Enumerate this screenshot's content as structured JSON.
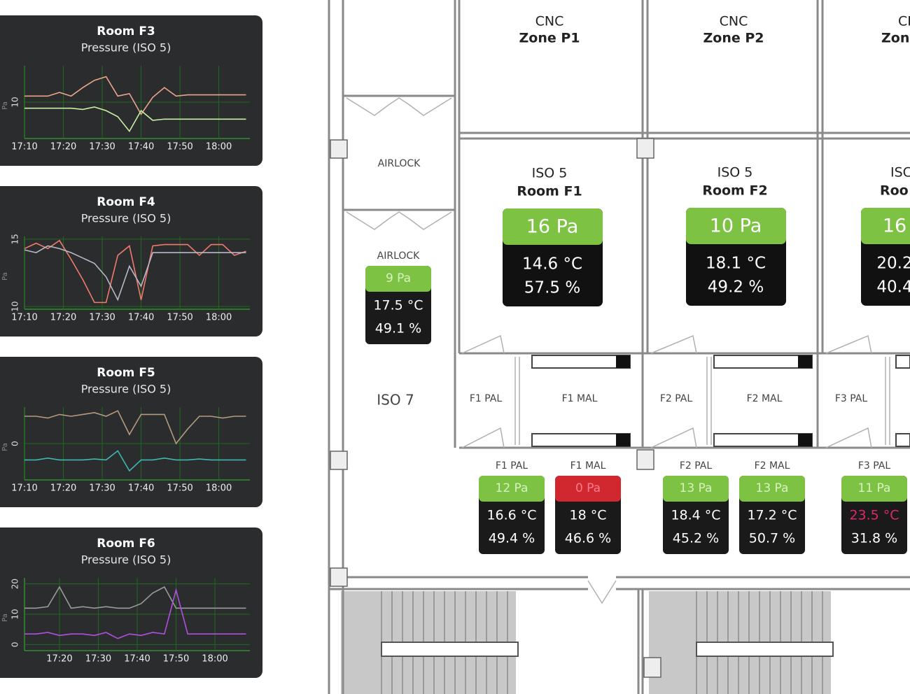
{
  "panels": [
    {
      "title": "Room F3",
      "subtitle": "Pressure (ISO 5)",
      "y_label": "Pa",
      "ylim": [
        7,
        13
      ],
      "yticks": [
        10
      ],
      "xlim": [
        10,
        68
      ],
      "xticks": [
        {
          "value": 10,
          "label": "17:10"
        },
        {
          "value": 20,
          "label": "17:20"
        },
        {
          "value": 30,
          "label": "17:30"
        },
        {
          "value": 40,
          "label": "17:40"
        },
        {
          "value": 50,
          "label": "17:50"
        },
        {
          "value": 60,
          "label": "18:00"
        }
      ],
      "x": [
        10,
        13,
        16,
        19,
        22,
        25,
        28,
        31,
        34,
        37,
        40,
        43,
        46,
        49,
        52,
        55,
        58,
        61,
        64,
        67
      ],
      "series": [
        {
          "color": "#e8a58a",
          "values": [
            10.5,
            10.5,
            10.5,
            10.8,
            10.5,
            11.2,
            11.8,
            12.1,
            10.5,
            10.7,
            9.0,
            10.4,
            11.2,
            10.5,
            10.6,
            10.6,
            10.6,
            10.6,
            10.6,
            10.6
          ]
        },
        {
          "color": "#c8f0a0",
          "values": [
            9.5,
            9.5,
            9.5,
            9.5,
            9.5,
            9.4,
            9.6,
            9.3,
            8.8,
            7.6,
            9.3,
            8.5,
            8.6,
            8.6,
            8.6,
            8.6,
            8.6,
            8.6,
            8.6,
            8.6
          ]
        }
      ]
    },
    {
      "title": "Room F4",
      "subtitle": "Pressure (ISO 5)",
      "y_label": "Pa",
      "ylim": [
        9.8,
        15.2
      ],
      "yticks": [
        10,
        15
      ],
      "xlim": [
        10,
        68
      ],
      "xticks": [
        {
          "value": 10,
          "label": "17:10"
        },
        {
          "value": 20,
          "label": "17:20"
        },
        {
          "value": 30,
          "label": "17:30"
        },
        {
          "value": 40,
          "label": "17:40"
        },
        {
          "value": 50,
          "label": "17:50"
        },
        {
          "value": 60,
          "label": "18:00"
        }
      ],
      "x": [
        10,
        13,
        16,
        19,
        22,
        25,
        28,
        31,
        34,
        37,
        40,
        43,
        46,
        49,
        52,
        55,
        58,
        61,
        64,
        67
      ],
      "series": [
        {
          "color": "#ef7b6a",
          "values": [
            14.3,
            14.7,
            14.3,
            14.9,
            13.5,
            12.0,
            10.3,
            10.3,
            13.8,
            14.5,
            10.5,
            14.5,
            14.6,
            14.6,
            14.6,
            13.8,
            14.6,
            14.6,
            13.8,
            14.1
          ]
        },
        {
          "color": "#b8b8c8",
          "values": [
            14.2,
            14.0,
            14.5,
            14.3,
            14.0,
            13.6,
            13.2,
            12.2,
            10.5,
            13.0,
            11.5,
            14.0,
            14.0,
            14.0,
            14.0,
            14.0,
            14.0,
            14.0,
            14.0,
            14.0
          ]
        }
      ]
    },
    {
      "title": "Room F5",
      "subtitle": "Pressure (ISO 5)",
      "y_label": "Pa",
      "ylim": [
        -2,
        2
      ],
      "yticks": [
        0
      ],
      "xlim": [
        10,
        68
      ],
      "xticks": [
        {
          "value": 10,
          "label": "17:10"
        },
        {
          "value": 20,
          "label": "17:20"
        },
        {
          "value": 30,
          "label": "17:30"
        },
        {
          "value": 40,
          "label": "17:40"
        },
        {
          "value": 50,
          "label": "17:50"
        },
        {
          "value": 60,
          "label": "18:00"
        }
      ],
      "x": [
        10,
        13,
        16,
        19,
        22,
        25,
        28,
        31,
        34,
        37,
        40,
        43,
        46,
        49,
        52,
        55,
        58,
        61,
        64,
        67
      ],
      "series": [
        {
          "color": "#b59a80",
          "values": [
            1.5,
            1.5,
            1.4,
            1.6,
            1.5,
            1.6,
            1.7,
            1.5,
            1.8,
            0.5,
            1.6,
            1.6,
            1.6,
            0.0,
            0.8,
            1.5,
            1.5,
            1.4,
            1.5,
            1.5
          ]
        },
        {
          "color": "#3fb8b0",
          "values": [
            -0.9,
            -0.9,
            -0.8,
            -0.9,
            -0.9,
            -0.9,
            -0.85,
            -0.9,
            -0.4,
            -1.5,
            -0.9,
            -0.9,
            -0.8,
            -0.9,
            -0.9,
            -0.85,
            -0.9,
            -0.9,
            -0.9,
            -0.9
          ]
        }
      ]
    },
    {
      "title": "Room F6",
      "subtitle": "Pressure (ISO 5)",
      "y_label": "Pa",
      "ylim": [
        -2,
        22
      ],
      "yticks": [
        0,
        10,
        20
      ],
      "xlim": [
        11,
        69
      ],
      "xticks": [
        {
          "value": 20,
          "label": "17:20"
        },
        {
          "value": 30,
          "label": "17:30"
        },
        {
          "value": 40,
          "label": "17:40"
        },
        {
          "value": 50,
          "label": "17:50"
        },
        {
          "value": 60,
          "label": "18:00"
        }
      ],
      "x": [
        11,
        14,
        17,
        20,
        23,
        26,
        29,
        32,
        35,
        38,
        41,
        44,
        47,
        50,
        53,
        56,
        59,
        62,
        65,
        68
      ],
      "series": [
        {
          "color": "#9a9a9a",
          "values": [
            12,
            12,
            12.5,
            19,
            12,
            12.5,
            12,
            12.5,
            12,
            12,
            13.5,
            17,
            19,
            12,
            12,
            12,
            12,
            12,
            12,
            12
          ]
        },
        {
          "color": "#b050e0",
          "values": [
            3.5,
            3.5,
            4,
            3,
            3.5,
            3.5,
            3,
            4,
            2,
            3.5,
            3,
            4,
            3.5,
            18,
            3.5,
            3.5,
            3.5,
            3.5,
            3.5,
            3.5
          ]
        }
      ]
    }
  ],
  "zones": [
    {
      "line1": "CNC",
      "line2": "Zone P1"
    },
    {
      "line1": "CNC",
      "line2": "Zone P2"
    },
    {
      "line1": "CI",
      "line2": "Zon"
    }
  ],
  "rooms": [
    {
      "class": "ISO 5",
      "name": "Room F1",
      "pressure": "16 Pa",
      "temperature": "14.6 °C",
      "humidity": "57.5 %",
      "status": "ok"
    },
    {
      "class": "ISO 5",
      "name": "Room F2",
      "pressure": "10 Pa",
      "temperature": "18.1 °C",
      "humidity": "49.2 %",
      "status": "ok"
    },
    {
      "class": "ISC",
      "name": "Roo",
      "pressure": "16",
      "temperature": "20.2",
      "humidity": "40.4",
      "status": "ok"
    }
  ],
  "area_labels": [
    "AIRLOCK",
    "ISO 7",
    "F1 PAL",
    "F1 MAL",
    "F2 PAL",
    "F2 MAL",
    "F3 PAL"
  ],
  "sensors": [
    {
      "label": "AIRLOCK",
      "pressure": "9 Pa",
      "temperature": "17.5 °C",
      "humidity": "49.1 %",
      "status": "ok"
    },
    {
      "label": "F1 PAL",
      "pressure": "12 Pa",
      "temperature": "16.6 °C",
      "humidity": "49.4 %",
      "status": "ok"
    },
    {
      "label": "F1 MAL",
      "pressure": "0 Pa",
      "temperature": "18 °C",
      "humidity": "46.6 %",
      "status": "alarm"
    },
    {
      "label": "F2 PAL",
      "pressure": "13 Pa",
      "temperature": "18.4 °C",
      "humidity": "45.2 %",
      "status": "ok"
    },
    {
      "label": "F2 MAL",
      "pressure": "13 Pa",
      "temperature": "17.2 °C",
      "humidity": "50.7 %",
      "status": "ok"
    },
    {
      "label": "F3 PAL",
      "pressure": "11 Pa",
      "temperature": "23.5 °C",
      "humidity": "31.8 %",
      "status": "ok",
      "temperature_alarm": true
    }
  ]
}
